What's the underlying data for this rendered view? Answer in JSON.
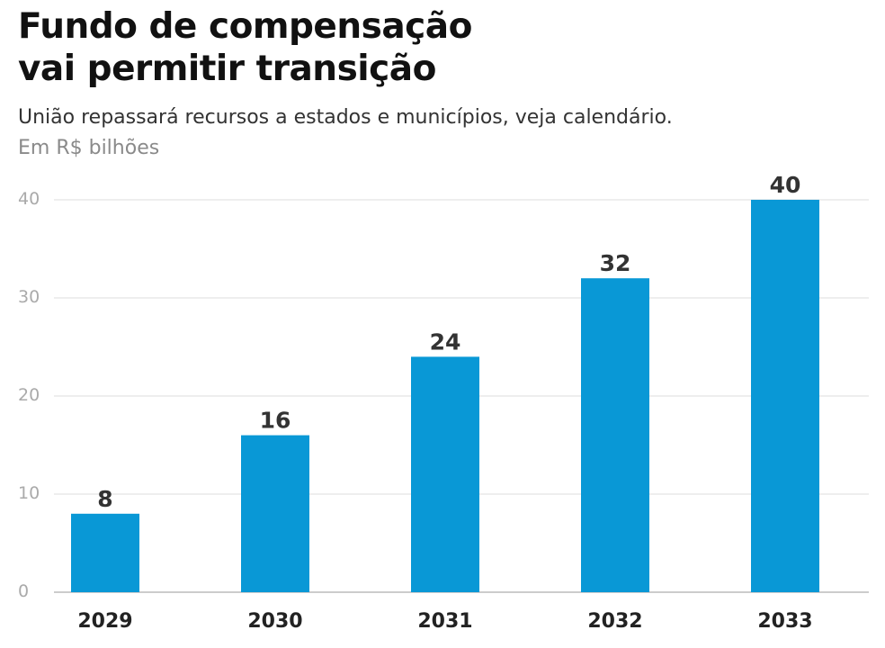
{
  "header": {
    "title_line1": "Fundo de compensação",
    "title_line2": "vai permitir transição",
    "subtitle": "União repassará recursos a estados e municípios, veja calendário.",
    "unit": "Em R$ bilhões"
  },
  "colors": {
    "bar": "#0998D6",
    "grid": "#dddddd",
    "baseline": "#cccccc"
  },
  "chart_data": {
    "type": "bar",
    "title": "Fundo de compensação vai permitir transição",
    "subtitle": "União repassará recursos a estados e municípios, veja calendário.",
    "ylabel": "Em R$ bilhões",
    "xlabel": "",
    "categories": [
      "2029",
      "2030",
      "2031",
      "2032",
      "2033"
    ],
    "values": [
      8,
      16,
      24,
      32,
      40
    ],
    "value_labels": [
      "8",
      "16",
      "24",
      "32",
      "40"
    ],
    "yticks": [
      0,
      10,
      20,
      30,
      40
    ],
    "ytick_labels": [
      "0",
      "10",
      "20",
      "30",
      "40"
    ],
    "ylim": [
      0,
      40
    ],
    "grid": true,
    "legend": "none"
  }
}
